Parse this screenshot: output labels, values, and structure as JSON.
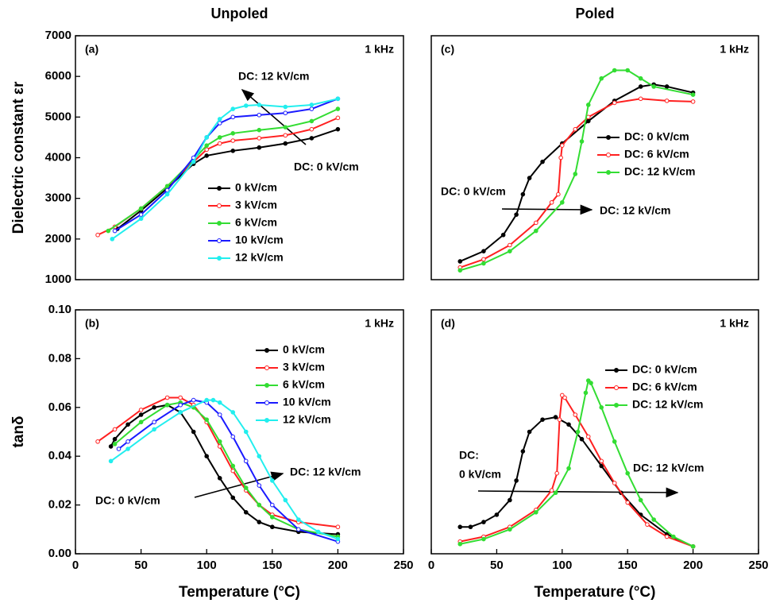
{
  "chart_data": [
    {
      "type": "line",
      "title": "Unpoled",
      "panel_label": "(a)",
      "frequency_label": "1 kHz",
      "ylabel": "Dielectric constant εr",
      "xlim": [
        0,
        250
      ],
      "ylim": [
        1000,
        7000
      ],
      "yticks": [
        1000,
        2000,
        3000,
        4000,
        5000,
        6000,
        7000
      ],
      "annotations": [
        "DC: 12 kV/cm",
        "DC: 0 kV/cm"
      ],
      "legend": "center",
      "series": [
        {
          "name": "0 kV/cm",
          "color": "#000000",
          "x": [
            32,
            50,
            70,
            90,
            100,
            120,
            140,
            160,
            180,
            200
          ],
          "values": [
            2250,
            2700,
            3250,
            3850,
            4050,
            4170,
            4250,
            4350,
            4480,
            4700
          ]
        },
        {
          "name": "3 kV/cm",
          "color": "#ff2020",
          "x": [
            17,
            30,
            50,
            70,
            90,
            100,
            110,
            120,
            140,
            160,
            180,
            200
          ],
          "values": [
            2100,
            2300,
            2750,
            3300,
            3900,
            4200,
            4350,
            4420,
            4480,
            4550,
            4700,
            4980
          ]
        },
        {
          "name": "6 kV/cm",
          "color": "#33dd33",
          "x": [
            25,
            50,
            70,
            90,
            100,
            110,
            120,
            140,
            160,
            180,
            200
          ],
          "values": [
            2200,
            2750,
            3300,
            3950,
            4300,
            4500,
            4600,
            4680,
            4750,
            4900,
            5200
          ]
        },
        {
          "name": "10 kV/cm",
          "color": "#1a1aff",
          "x": [
            30,
            50,
            70,
            90,
            100,
            110,
            120,
            140,
            160,
            180,
            200
          ],
          "values": [
            2200,
            2600,
            3200,
            4000,
            4500,
            4850,
            5000,
            5050,
            5100,
            5200,
            5450
          ]
        },
        {
          "name": "12 kV/cm",
          "color": "#22eeee",
          "x": [
            28,
            50,
            70,
            90,
            100,
            110,
            120,
            130,
            140,
            160,
            180,
            200
          ],
          "values": [
            2000,
            2500,
            3100,
            3900,
            4500,
            4950,
            5200,
            5280,
            5300,
            5250,
            5300,
            5450
          ]
        }
      ]
    },
    {
      "type": "line",
      "panel_label": "(b)",
      "frequency_label": "1 kHz",
      "ylabel": "tanδ",
      "xlabel": "Temperature (°C)",
      "xlim": [
        0,
        250
      ],
      "xticks": [
        0,
        50,
        100,
        150,
        200,
        250
      ],
      "ylim": [
        0,
        0.1
      ],
      "yticks": [
        {
          "value": 0,
          "label": "0.00"
        },
        {
          "value": 0.02,
          "label": "0.02"
        },
        {
          "value": 0.04,
          "label": "0.04"
        },
        {
          "value": 0.06,
          "label": "0.06"
        },
        {
          "value": 0.08,
          "label": "0.08"
        },
        {
          "value": 0.1,
          "label": "0.10"
        }
      ],
      "annotations": [
        "DC: 12 kV/cm",
        "DC: 0 kV/cm"
      ],
      "legend": "upper right",
      "series": [
        {
          "name": "0 kV/cm",
          "color": "#000000",
          "x": [
            27,
            30,
            40,
            50,
            60,
            70,
            80,
            90,
            100,
            110,
            120,
            130,
            140,
            150,
            170,
            200
          ],
          "values": [
            0.044,
            0.047,
            0.053,
            0.057,
            0.06,
            0.061,
            0.058,
            0.05,
            0.04,
            0.031,
            0.023,
            0.017,
            0.013,
            0.011,
            0.009,
            0.008
          ]
        },
        {
          "name": "3 kV/cm",
          "color": "#ff2020",
          "x": [
            17,
            30,
            50,
            70,
            80,
            90,
            100,
            110,
            120,
            130,
            140,
            150,
            170,
            200
          ],
          "values": [
            0.046,
            0.051,
            0.059,
            0.064,
            0.064,
            0.061,
            0.054,
            0.044,
            0.034,
            0.026,
            0.02,
            0.016,
            0.013,
            0.011
          ]
        },
        {
          "name": "6 kV/cm",
          "color": "#33dd33",
          "x": [
            30,
            50,
            70,
            80,
            90,
            100,
            110,
            120,
            130,
            140,
            150,
            170,
            200
          ],
          "values": [
            0.045,
            0.054,
            0.061,
            0.062,
            0.06,
            0.055,
            0.046,
            0.036,
            0.027,
            0.02,
            0.015,
            0.01,
            0.007
          ]
        },
        {
          "name": "10 kV/cm",
          "color": "#1a1aff",
          "x": [
            33,
            40,
            60,
            80,
            90,
            100,
            110,
            120,
            130,
            140,
            150,
            170,
            200
          ],
          "values": [
            0.043,
            0.046,
            0.054,
            0.061,
            0.063,
            0.062,
            0.057,
            0.048,
            0.038,
            0.028,
            0.02,
            0.01,
            0.005
          ]
        },
        {
          "name": "12 kV/cm",
          "color": "#22eeee",
          "x": [
            27,
            40,
            60,
            80,
            100,
            105,
            110,
            120,
            130,
            140,
            150,
            160,
            170,
            185,
            200
          ],
          "values": [
            0.038,
            0.043,
            0.051,
            0.058,
            0.063,
            0.063,
            0.062,
            0.058,
            0.05,
            0.04,
            0.03,
            0.022,
            0.014,
            0.009,
            0.006
          ]
        }
      ]
    },
    {
      "type": "line",
      "title": "Poled",
      "panel_label": "(c)",
      "frequency_label": "1 kHz",
      "xlim": [
        0,
        250
      ],
      "ylim": [
        1000,
        7000
      ],
      "annotations": [
        "DC: 0 kV/cm",
        "DC: 12 kV/cm"
      ],
      "legend": "center right",
      "series": [
        {
          "name": "DC: 0 kV/cm",
          "color": "#000000",
          "x": [
            22,
            40,
            55,
            65,
            70,
            75,
            85,
            100,
            120,
            140,
            160,
            170,
            180,
            200
          ],
          "values": [
            1450,
            1700,
            2100,
            2600,
            3100,
            3500,
            3900,
            4350,
            4900,
            5400,
            5750,
            5800,
            5750,
            5600
          ]
        },
        {
          "name": "DC: 6 kV/cm",
          "color": "#ff2020",
          "x": [
            22,
            40,
            60,
            80,
            92,
            97,
            99,
            100,
            110,
            120,
            140,
            160,
            180,
            200
          ],
          "values": [
            1300,
            1500,
            1850,
            2400,
            2900,
            3100,
            4000,
            4300,
            4700,
            5000,
            5350,
            5450,
            5400,
            5380
          ]
        },
        {
          "name": "DC: 12 kV/cm",
          "color": "#33dd33",
          "x": [
            22,
            40,
            60,
            80,
            100,
            110,
            115,
            120,
            130,
            140,
            150,
            160,
            170,
            200
          ],
          "values": [
            1230,
            1400,
            1700,
            2200,
            2900,
            3600,
            4400,
            5300,
            5950,
            6150,
            6150,
            5950,
            5750,
            5550
          ]
        }
      ]
    },
    {
      "type": "line",
      "panel_label": "(d)",
      "frequency_label": "1 kHz",
      "xlabel": "Temperature (°C)",
      "xlim": [
        0,
        250
      ],
      "xticks": [
        0,
        50,
        100,
        150,
        200,
        250
      ],
      "ylim": [
        0,
        0.1
      ],
      "annotations": [
        "DC:",
        "0 kV/cm",
        "DC: 12 kV/cm"
      ],
      "legend": "upper right",
      "series": [
        {
          "name": "DC: 0 kV/cm",
          "color": "#000000",
          "x": [
            22,
            30,
            40,
            50,
            60,
            65,
            70,
            75,
            85,
            95,
            105,
            115,
            130,
            145,
            160,
            180,
            200
          ],
          "values": [
            0.011,
            0.011,
            0.013,
            0.016,
            0.022,
            0.03,
            0.042,
            0.05,
            0.055,
            0.056,
            0.053,
            0.047,
            0.036,
            0.025,
            0.016,
            0.008,
            0.003
          ]
        },
        {
          "name": "DC: 6 kV/cm",
          "color": "#ff2020",
          "x": [
            22,
            40,
            60,
            80,
            92,
            96,
            98,
            100,
            102,
            110,
            120,
            130,
            140,
            150,
            165,
            180,
            200
          ],
          "values": [
            0.005,
            0.007,
            0.011,
            0.018,
            0.026,
            0.033,
            0.055,
            0.065,
            0.064,
            0.057,
            0.048,
            0.038,
            0.029,
            0.021,
            0.012,
            0.007,
            0.003
          ]
        },
        {
          "name": "DC: 12 kV/cm",
          "color": "#33dd33",
          "x": [
            22,
            40,
            60,
            80,
            95,
            105,
            112,
            118,
            120,
            122,
            130,
            140,
            150,
            160,
            170,
            185,
            200
          ],
          "values": [
            0.004,
            0.006,
            0.01,
            0.017,
            0.025,
            0.035,
            0.05,
            0.066,
            0.071,
            0.07,
            0.06,
            0.046,
            0.033,
            0.022,
            0.014,
            0.007,
            0.003
          ]
        }
      ]
    }
  ]
}
